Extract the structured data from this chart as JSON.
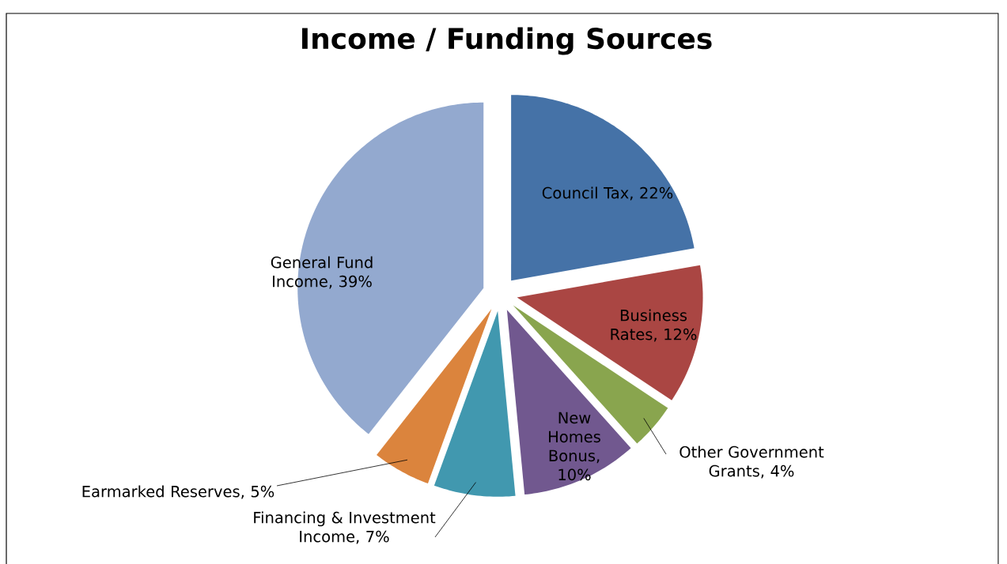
{
  "chart_data": {
    "type": "pie",
    "title": "Income / Funding Sources",
    "categories": [
      "Council Tax",
      "Business Rates",
      "Other Government Grants",
      "New Homes Bonus",
      "Financing & Investment Income",
      "Earmarked Reserves",
      "General Fund Income"
    ],
    "values": [
      22,
      12,
      4,
      10,
      7,
      5,
      39
    ],
    "value_labels": [
      ", 22%",
      ", 12%",
      ", 4%",
      ", 10%",
      ", 7%",
      ", 5%",
      ", 39%"
    ],
    "colors": [
      "#4572a7",
      "#aa4643",
      "#89a54e",
      "#71588f",
      "#4198af",
      "#db843d",
      "#93a9cf"
    ]
  }
}
